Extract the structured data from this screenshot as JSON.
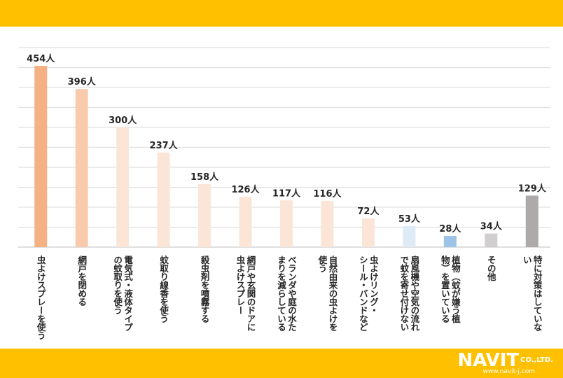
{
  "chart_data": {
    "type": "bar",
    "title": "",
    "xlabel": "",
    "ylabel": "",
    "ylim": [
      0,
      500
    ],
    "grid": true,
    "legend": "none",
    "unit": "人",
    "categories": [
      "虫よけスプレーを使う",
      "網戸を閉める",
      "電気式・液体タイプの蚊取りを使う",
      "蚊取り線香を使う",
      "殺虫剤を噴霧する",
      "網戸や玄関のドアに虫よけスプレー",
      "ベランダや庭の水たまりを減らしている",
      "自然由来の虫よけを使う",
      "虫よけリング・シール・バンドなど",
      "扇風機や空気の流れで蚊を寄せ付けない",
      "植物（蚊が嫌う植物）を置いている",
      "その他",
      "特に対策はしていない"
    ],
    "values": [
      454,
      396,
      300,
      237,
      158,
      126,
      117,
      116,
      72,
      53,
      28,
      34,
      129
    ],
    "value_labels": [
      "454人",
      "396人",
      "300人",
      "237人",
      "158人",
      "126人",
      "117人",
      "116人",
      "72人",
      "53人",
      "28人",
      "34人",
      "129人"
    ],
    "category_lines": [
      [
        "虫よけスプレーを使う"
      ],
      [
        "網戸を閉める"
      ],
      [
        "電気式・液体タイプ",
        "の蚊取りを使う"
      ],
      [
        "蚊取り線香を使う"
      ],
      [
        "殺虫剤を噴霧する"
      ],
      [
        "網戸や玄関のドアに",
        "虫よけスプレー"
      ],
      [
        "ベランダや庭の水た",
        "まりを減らしている"
      ],
      [
        "自然由来の虫よけを",
        "使う"
      ],
      [
        "虫よけリング・",
        "シール・バンドなど"
      ],
      [
        "扇風機や空気の流れ",
        "で蚊を寄せ付けない"
      ],
      [
        "植物（蚊が嫌う植",
        "物）を置いている"
      ],
      [
        "その他"
      ],
      [
        "特に対策はしていな",
        "い"
      ]
    ],
    "colors": [
      "#f4b183",
      "#f8cbad",
      "#fbe5d6",
      "#fbe5d6",
      "#fbe5d6",
      "#fbe5d6",
      "#fbe5d6",
      "#fbe5d6",
      "#fbe5d6",
      "#deebf7",
      "#9dc3e6",
      "#d0cece",
      "#aeaaaa"
    ]
  },
  "logo": {
    "name": "NAVIT",
    "suffix": "CO.,LTD.",
    "url": "www.navit-j.com"
  }
}
